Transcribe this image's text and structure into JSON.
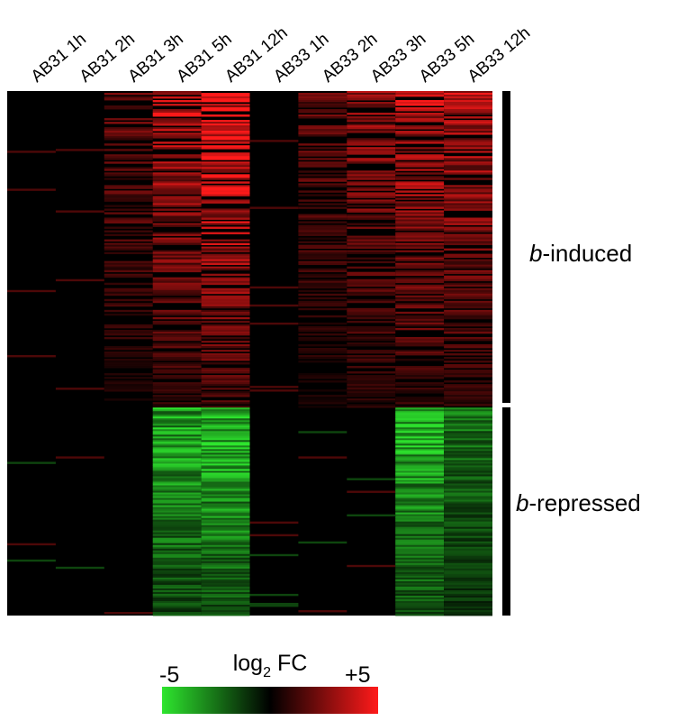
{
  "chart_data": {
    "type": "heatmap",
    "title": "",
    "xlabel": "",
    "ylabel": "",
    "columns": [
      "AB31 1h",
      "AB31 2h",
      "AB31 3h",
      "AB31 5h",
      "AB31 12h",
      "AB33 1h",
      "AB33 2h",
      "AB33 3h",
      "AB33 5h",
      "AB33 12h"
    ],
    "row_groups": [
      {
        "prefix": "b",
        "suffix": "-induced",
        "fraction_of_rows": 0.605,
        "sign": 1
      },
      {
        "prefix": "b",
        "suffix": "-repressed",
        "fraction_of_rows": 0.395,
        "sign": -1
      }
    ],
    "rows_total": 290,
    "colorscale": {
      "label": "log",
      "label_sub": "2",
      "label_rest": " FC",
      "min": -5,
      "max": 5,
      "min_label": "-5",
      "max_label": "+5",
      "low_color": "#2ee52e",
      "mid_color": "#000000",
      "high_color": "#ff1a1a"
    },
    "mean_log2fc_by_column": {
      "induced": [
        0.05,
        0.1,
        1.3,
        2.2,
        3.0,
        0.05,
        1.2,
        1.8,
        2.3,
        2.1
      ],
      "repressed": [
        -0.05,
        -0.05,
        -0.15,
        -2.4,
        -2.8,
        -0.05,
        -0.1,
        -0.3,
        -2.6,
        -1.6
      ]
    }
  }
}
